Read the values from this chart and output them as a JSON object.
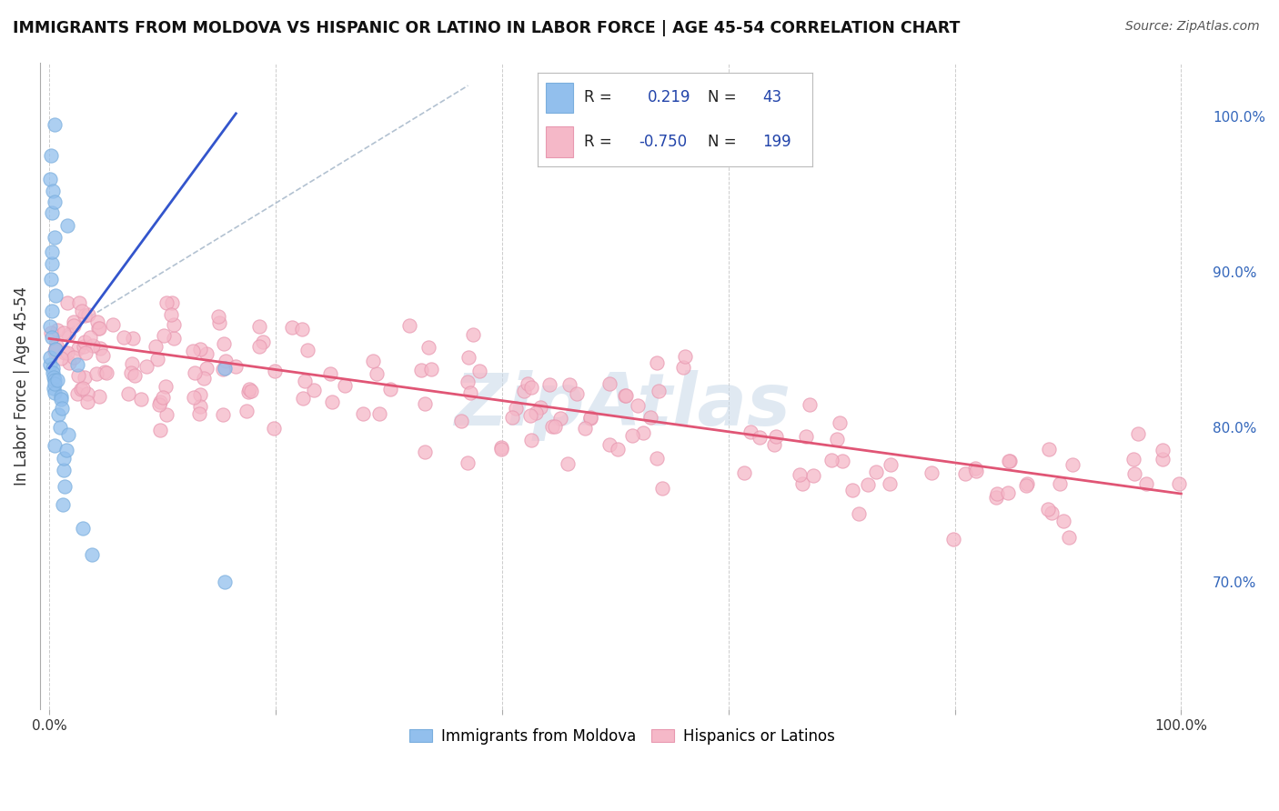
{
  "title": "IMMIGRANTS FROM MOLDOVA VS HISPANIC OR LATINO IN LABOR FORCE | AGE 45-54 CORRELATION CHART",
  "source": "Source: ZipAtlas.com",
  "ylabel": "In Labor Force | Age 45-54",
  "scatter_blue_color": "#92bfed",
  "scatter_blue_edge": "#7aaedd",
  "scatter_pink_color": "#f5b8c8",
  "scatter_pink_edge": "#e898b0",
  "line_blue_color": "#3355cc",
  "line_pink_color": "#e05575",
  "dash_color": "#aabbcc",
  "legend_R_color": "#2244aa",
  "watermark_color": "#c8d8e8",
  "background_color": "#ffffff",
  "grid_color": "#cccccc",
  "right_tick_color": "#3366bb",
  "blue_line_x0": 0.0,
  "blue_line_y0": 0.838,
  "blue_line_x1": 0.165,
  "blue_line_y1": 1.002,
  "pink_line_x0": 0.0,
  "pink_line_y0": 0.857,
  "pink_line_x1": 1.0,
  "pink_line_y1": 0.757,
  "ylim_min": 0.618,
  "ylim_max": 1.035,
  "xlim_min": -0.008,
  "xlim_max": 1.02
}
